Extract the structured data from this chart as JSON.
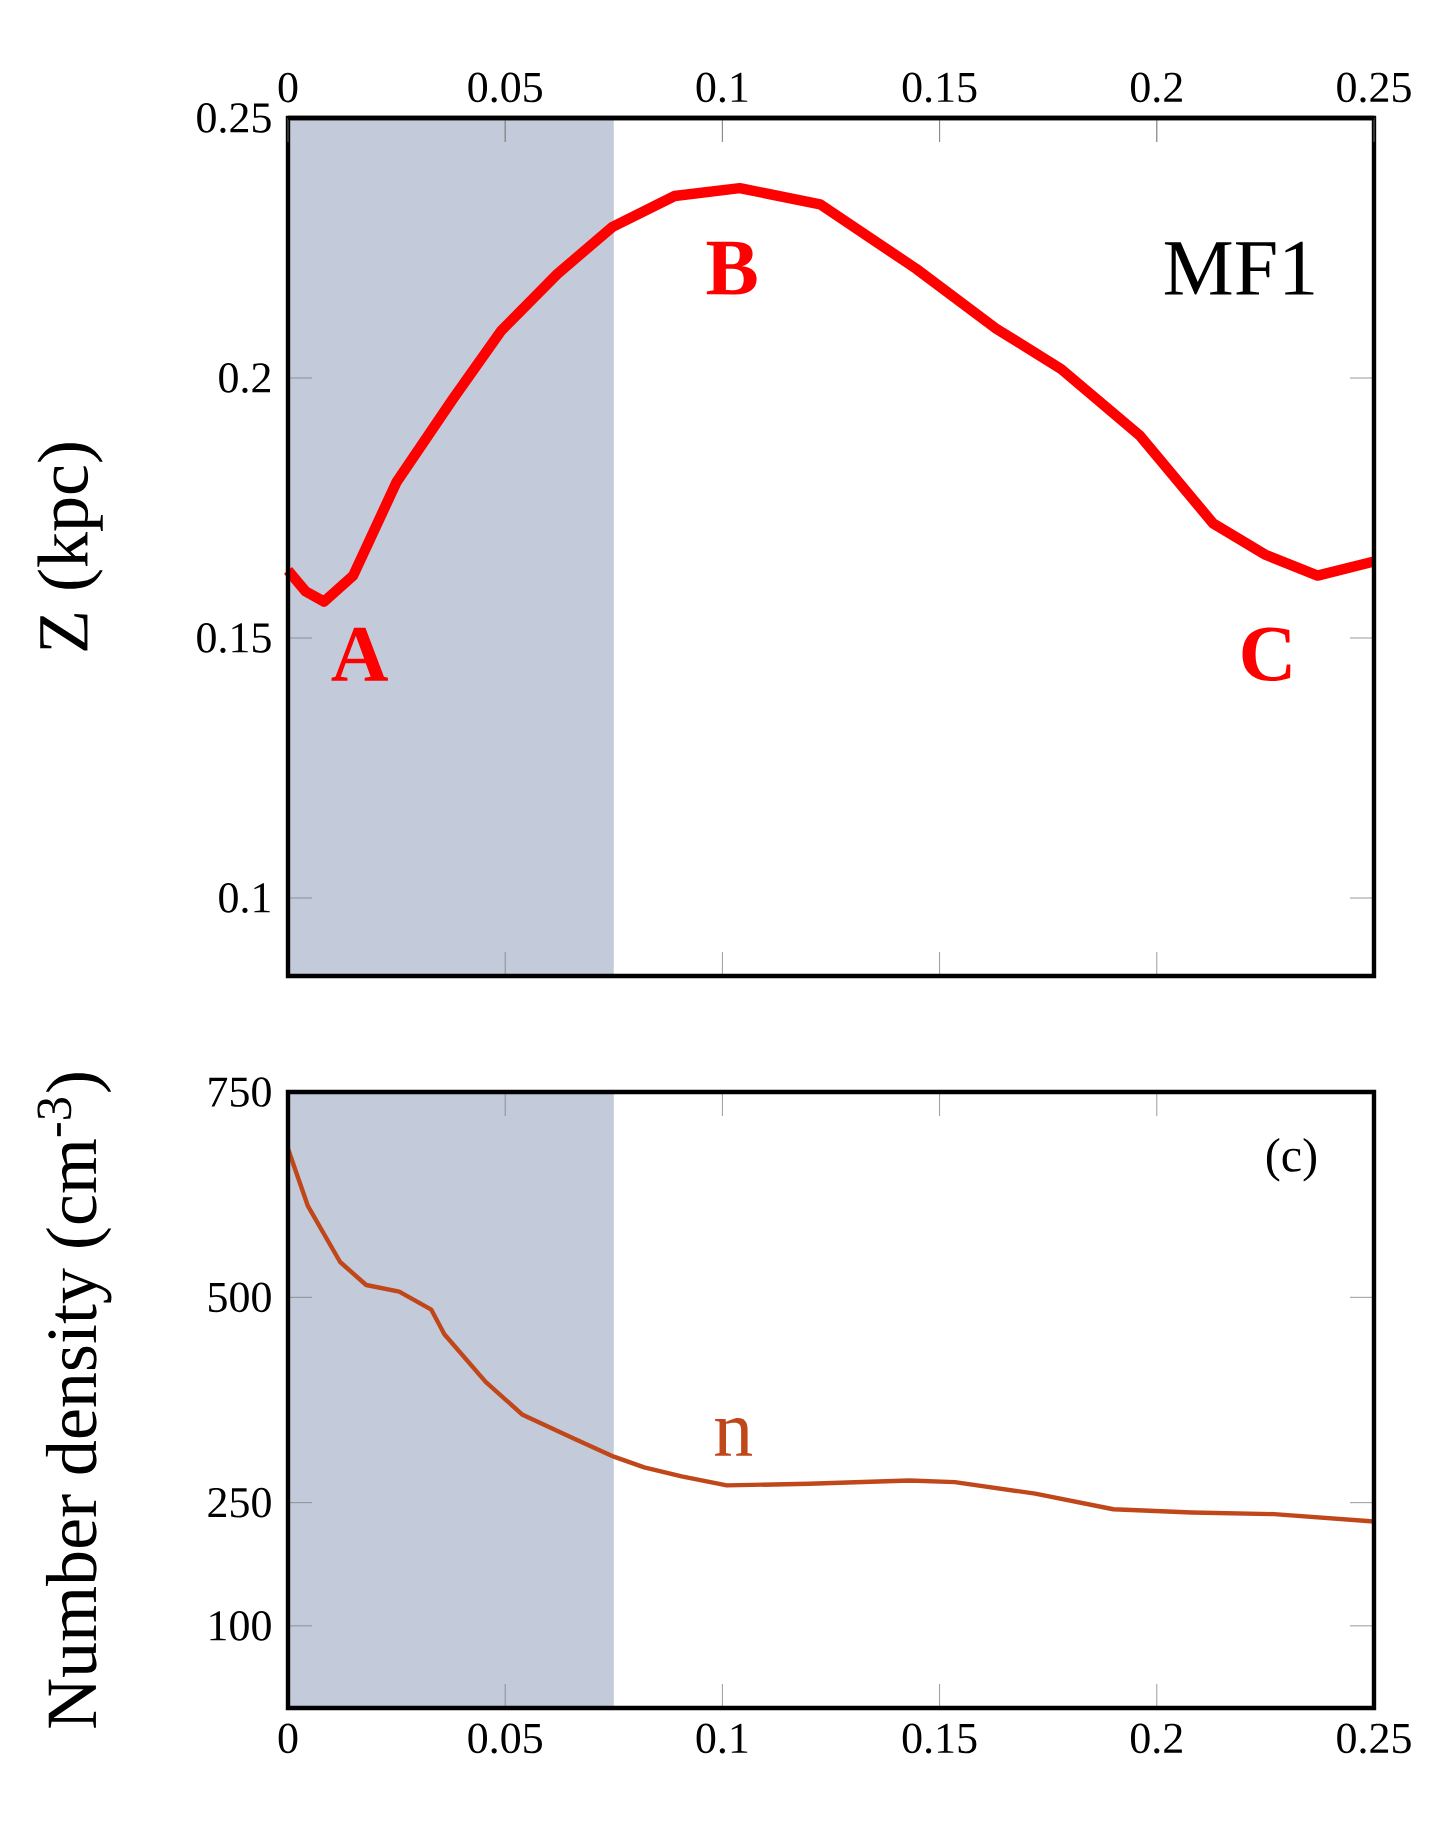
{
  "chart_data": [
    {
      "type": "line",
      "ylabel": "Z (kpc)",
      "xlim": [
        0,
        0.25
      ],
      "xticks": [
        0,
        0.05,
        0.1,
        0.15,
        0.2,
        0.25
      ],
      "tick_labels": "y",
      "x2lim": [
        0,
        0.25
      ],
      "x2ticks": [
        0,
        0.05,
        0.1,
        0.15,
        0.2,
        0.25
      ],
      "ylim": [
        0.085,
        0.25
      ],
      "yticks": [
        0.1,
        0.15,
        0.2,
        0.25
      ],
      "x": [
        0,
        0.004,
        0.0083,
        0.015,
        0.025,
        0.038,
        0.049,
        0.062,
        0.0746,
        0.089,
        0.104,
        0.1225,
        0.1446,
        0.163,
        0.178,
        0.196,
        0.213,
        0.225,
        0.237,
        0.25
      ],
      "series": [
        {
          "color": "#ff0000",
          "values": [
            0.163,
            0.159,
            0.157,
            0.162,
            0.18,
            0.196,
            0.209,
            0.22,
            0.229,
            0.235,
            0.2365,
            0.2334,
            0.221,
            0.2095,
            0.2017,
            0.189,
            0.172,
            0.166,
            0.162,
            0.1647
          ]
        }
      ],
      "bands": [
        {
          "axis": "x",
          "from": 0,
          "to": 0.075,
          "color": "#c3cbdb"
        }
      ],
      "annotations": [
        "MF1",
        "A",
        "B",
        "C"
      ]
    },
    {
      "type": "line",
      "ylabel": "Number density (cm$^{-3}$)",
      "xlim": [
        0,
        0.25
      ],
      "xticks": [
        0,
        0.05,
        0.1,
        0.15,
        0.2,
        0.25
      ],
      "ylim": [
        0,
        750
      ],
      "yticks": [
        100,
        250,
        500,
        750
      ],
      "x": [
        0,
        0.0046,
        0.012,
        0.018,
        0.0256,
        0.033,
        0.036,
        0.0455,
        0.054,
        0.0654,
        0.075,
        0.082,
        0.0906,
        0.101,
        0.12,
        0.143,
        0.1535,
        0.172,
        0.19,
        0.208,
        0.227,
        0.25
      ],
      "series": [
        {
          "color": "#c0471a",
          "values": [
            681,
            611,
            543,
            515,
            507,
            485,
            455,
            397,
            357,
            329,
            306,
            293,
            282,
            271,
            273,
            277,
            275,
            261,
            242,
            238,
            236,
            227
          ]
        }
      ],
      "bands": [
        {
          "axis": "x",
          "from": 0,
          "to": 0.075,
          "color": "#c3cbdb"
        }
      ],
      "annotations": [
        "(c)",
        "n"
      ]
    }
  ]
}
